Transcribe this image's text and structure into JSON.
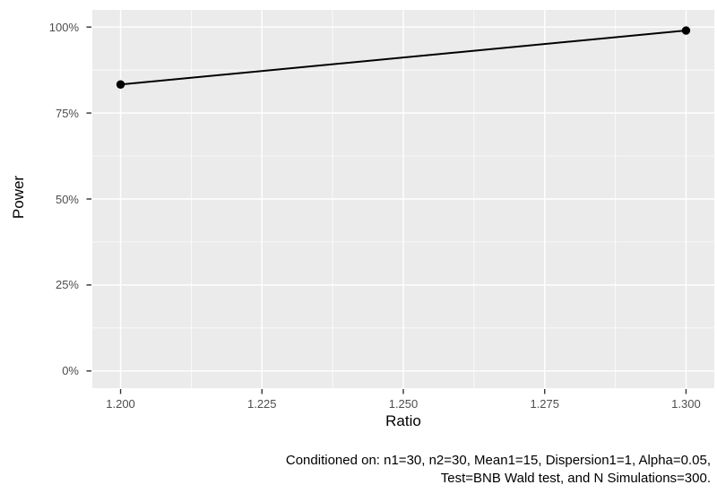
{
  "chart_data": {
    "type": "line",
    "title": "",
    "xlabel": "Ratio",
    "ylabel": "Power",
    "x": [
      1.2,
      1.3
    ],
    "series": [
      {
        "name": "Power",
        "values": [
          0.833,
          0.99
        ]
      }
    ],
    "x_range": [
      1.2,
      1.3
    ],
    "y_range": [
      0,
      1
    ],
    "x_ticks": {
      "values": [
        1.2,
        1.225,
        1.25,
        1.275,
        1.3
      ],
      "labels": [
        "1.200",
        "1.225",
        "1.250",
        "1.275",
        "1.300"
      ]
    },
    "y_ticks": {
      "values": [
        0,
        0.25,
        0.5,
        0.75,
        1
      ],
      "labels": [
        "0%",
        "25%",
        "50%",
        "75%",
        "100%"
      ]
    },
    "grid": "major-and-minor",
    "legend": "none",
    "caption_lines": [
      "Conditioned on: n1=30, n2=30, Mean1=15, Dispersion1=1, Alpha=0.05,",
      "Test=BNB Wald test, and N Simulations=300."
    ]
  },
  "colors": {
    "panel_background": "#ebebeb",
    "grid_major": "#ffffff",
    "grid_minor": "#ffffff",
    "tick_mark": "#333333",
    "tick_label": "#4d4d4d",
    "axis_title": "#000000",
    "caption": "#000000",
    "line": "#000000",
    "point": "#000000",
    "outer_background": "#ffffff"
  }
}
